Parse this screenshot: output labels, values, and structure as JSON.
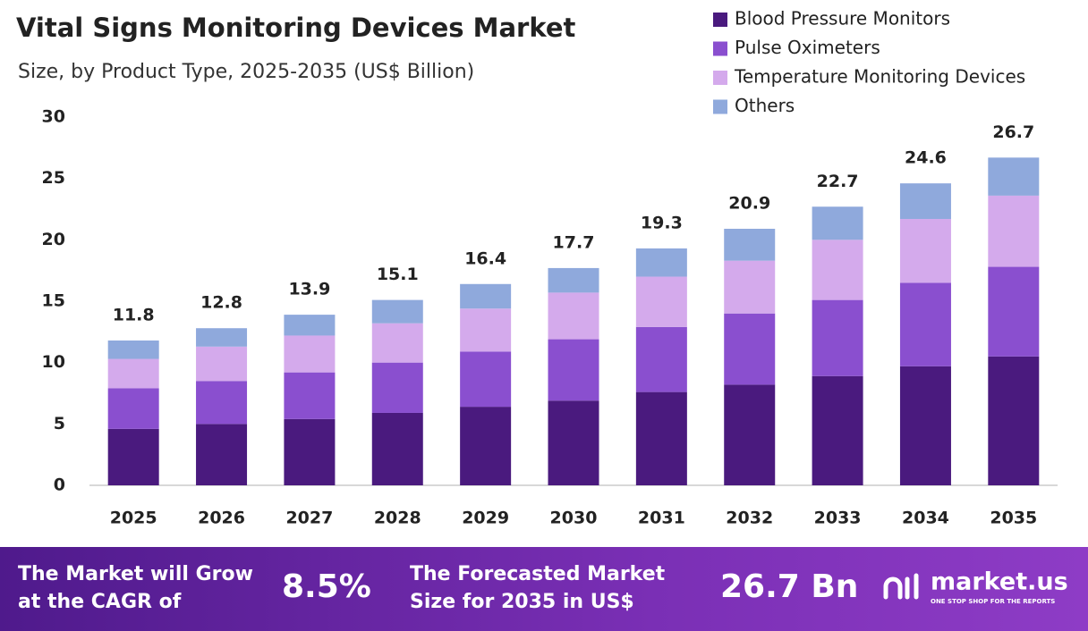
{
  "chart_data": {
    "type": "stacked_bar",
    "title": "Vital Signs Monitoring Devices Market",
    "subtitle": "Size, by Product Type, 2025-2035 (US$ Billion)",
    "categories": [
      "2025",
      "2026",
      "2027",
      "2028",
      "2029",
      "2030",
      "2031",
      "2032",
      "2033",
      "2034",
      "2035"
    ],
    "series": [
      {
        "name": "Blood Pressure Monitors",
        "color": "#4a1a7e",
        "values": [
          4.6,
          5.0,
          5.4,
          5.9,
          6.4,
          6.9,
          7.6,
          8.2,
          8.9,
          9.7,
          10.5
        ]
      },
      {
        "name": "Pulse Oximeters",
        "color": "#8a4fcf",
        "values": [
          3.3,
          3.5,
          3.8,
          4.1,
          4.5,
          5.0,
          5.3,
          5.8,
          6.2,
          6.8,
          7.3
        ]
      },
      {
        "name": "Temperature Monitoring Devices",
        "color": "#d4aaec",
        "values": [
          2.4,
          2.8,
          3.0,
          3.2,
          3.5,
          3.8,
          4.1,
          4.3,
          4.9,
          5.2,
          5.8
        ]
      },
      {
        "name": "Others",
        "color": "#8fa9dc",
        "values": [
          1.5,
          1.5,
          1.7,
          1.9,
          2.0,
          2.0,
          2.3,
          2.6,
          2.7,
          2.9,
          3.1
        ]
      }
    ],
    "totals": [
      11.8,
      12.8,
      13.9,
      15.1,
      16.4,
      17.7,
      19.3,
      20.9,
      22.7,
      24.6,
      26.7
    ],
    "ylim": [
      0,
      30
    ],
    "yticks": [
      0,
      5,
      10,
      15,
      20,
      25,
      30
    ],
    "grid": false
  },
  "footer": {
    "cagr_label": [
      "The Market will Grow",
      "at the CAGR of"
    ],
    "cagr_value": "8.5%",
    "forecast_label": [
      "The Forecasted Market",
      "Size for 2035 in US$"
    ],
    "forecast_value": "26.7 Bn",
    "logo": "market.us",
    "tagline": "ONE STOP SHOP FOR THE REPORTS"
  }
}
